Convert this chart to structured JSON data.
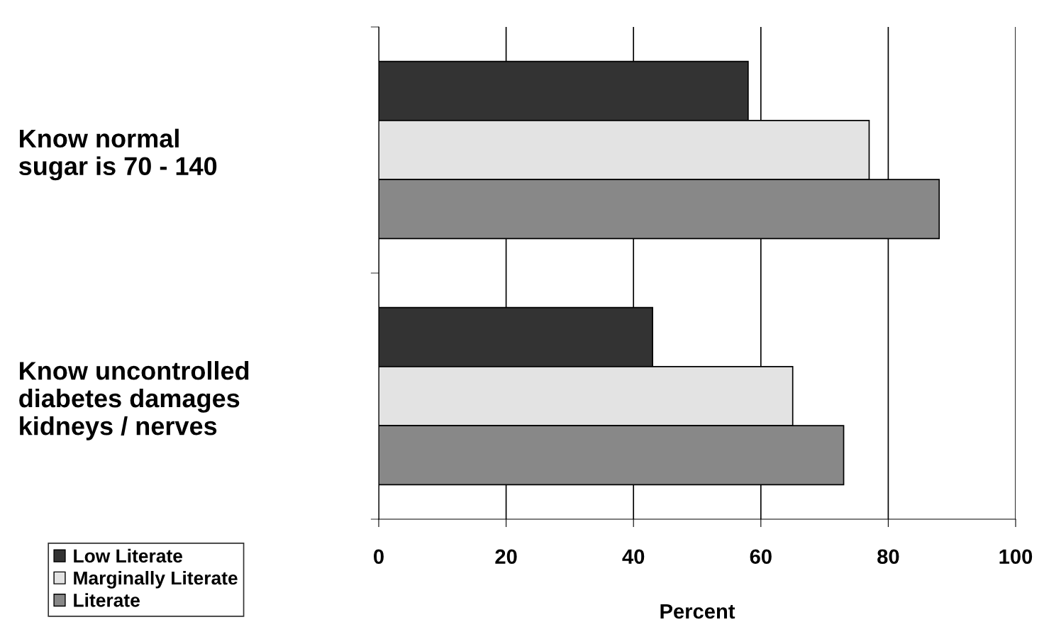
{
  "chart_data": {
    "type": "bar",
    "orientation": "horizontal",
    "xlabel": "Percent",
    "categories": [
      "Know normal\nsugar is 70 - 140",
      "Know uncontrolled\ndiabetes damages\nkidneys / nerves"
    ],
    "series": [
      {
        "name": "Low Literate",
        "color": "#333333",
        "values": [
          58,
          43
        ]
      },
      {
        "name": "Marginally Literate",
        "color": "#e3e3e3",
        "values": [
          77,
          65
        ]
      },
      {
        "name": "Literate",
        "color": "#888888",
        "values": [
          88,
          73
        ]
      }
    ],
    "xlim": [
      0,
      100
    ],
    "xticks": [
      0,
      20,
      40,
      60,
      80,
      100
    ],
    "grid": "x",
    "legend": "bottom left"
  }
}
